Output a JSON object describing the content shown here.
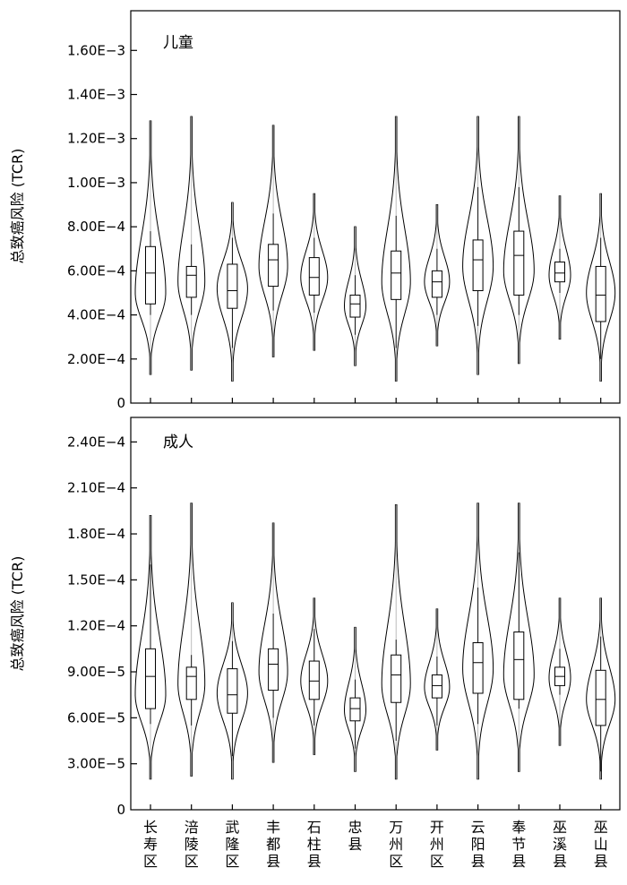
{
  "chart_data": [
    {
      "type": "violin",
      "panel_label": "儿童",
      "ylabel": "总致癌风险 (TCR)",
      "ylim": [
        0,
        0.00178
      ],
      "yticks": [
        0,
        0.0002,
        0.0004,
        0.0006,
        0.0008,
        0.001,
        0.0012,
        0.0014,
        0.0016
      ],
      "ytick_labels": [
        "0",
        "2.00E−4",
        "4.00E−4",
        "6.00E−4",
        "8.00E−4",
        "1.00E−3",
        "1.20E−3",
        "1.40E−3",
        "1.60E−3"
      ],
      "categories": [
        "长寿区",
        "涪陵区",
        "武隆区",
        "丰都县",
        "石柱县",
        "忠县",
        "万州区",
        "开州区",
        "云阳县",
        "奉节县",
        "巫溪县",
        "巫山县"
      ],
      "series": [
        {
          "min": 0.00013,
          "max": 0.00128,
          "q1": 0.00045,
          "median": 0.00059,
          "q3": 0.00071,
          "wlo": 0.0004,
          "whi": 0.00078,
          "mode": 0.0005,
          "width": 0.85
        },
        {
          "min": 0.00015,
          "max": 0.0013,
          "q1": 0.00048,
          "median": 0.00058,
          "q3": 0.00062,
          "wlo": 0.0004,
          "whi": 0.00072,
          "mode": 0.00055,
          "width": 0.75
        },
        {
          "min": 0.0001,
          "max": 0.00091,
          "q1": 0.00043,
          "median": 0.00051,
          "q3": 0.00063,
          "wlo": 0.00025,
          "whi": 0.00075,
          "mode": 0.00052,
          "width": 0.85
        },
        {
          "min": 0.00021,
          "max": 0.00126,
          "q1": 0.00053,
          "median": 0.00065,
          "q3": 0.00072,
          "wlo": 0.00042,
          "whi": 0.00086,
          "mode": 0.00062,
          "width": 0.8
        },
        {
          "min": 0.00024,
          "max": 0.00095,
          "q1": 0.00049,
          "median": 0.00057,
          "q3": 0.00066,
          "wlo": 0.00041,
          "whi": 0.00075,
          "mode": 0.00057,
          "width": 0.75
        },
        {
          "min": 0.00017,
          "max": 0.0008,
          "q1": 0.00039,
          "median": 0.00045,
          "q3": 0.00049,
          "wlo": 0.00031,
          "whi": 0.00058,
          "mode": 0.00044,
          "width": 0.6
        },
        {
          "min": 0.0001,
          "max": 0.0013,
          "q1": 0.00047,
          "median": 0.00059,
          "q3": 0.00069,
          "wlo": 0.00025,
          "whi": 0.00085,
          "mode": 0.00055,
          "width": 0.8
        },
        {
          "min": 0.00026,
          "max": 0.0009,
          "q1": 0.00048,
          "median": 0.00055,
          "q3": 0.0006,
          "wlo": 0.0004,
          "whi": 0.0007,
          "mode": 0.00055,
          "width": 0.7
        },
        {
          "min": 0.00013,
          "max": 0.0013,
          "q1": 0.00051,
          "median": 0.00065,
          "q3": 0.00074,
          "wlo": 0.00035,
          "whi": 0.00098,
          "mode": 0.00062,
          "width": 0.85
        },
        {
          "min": 0.00018,
          "max": 0.0013,
          "q1": 0.00049,
          "median": 0.00067,
          "q3": 0.00078,
          "wlo": 0.0004,
          "whi": 0.00098,
          "mode": 0.0006,
          "width": 0.85
        },
        {
          "min": 0.00029,
          "max": 0.00094,
          "q1": 0.00055,
          "median": 0.00059,
          "q3": 0.00064,
          "wlo": 0.0005,
          "whi": 0.0007,
          "mode": 0.00058,
          "width": 0.6
        },
        {
          "min": 0.0001,
          "max": 0.00095,
          "q1": 0.00037,
          "median": 0.00049,
          "q3": 0.00062,
          "wlo": 0.0002,
          "whi": 0.00075,
          "mode": 0.0005,
          "width": 0.8
        }
      ]
    },
    {
      "type": "violin",
      "panel_label": "成人",
      "ylabel": "总致癌风险 (TCR)",
      "ylim": [
        0,
        0.000256
      ],
      "yticks": [
        0,
        3e-05,
        6e-05,
        9e-05,
        0.00012,
        0.00015,
        0.00018,
        0.00021,
        0.00024
      ],
      "ytick_labels": [
        "0",
        "3.00E−5",
        "6.00E−5",
        "9.00E−5",
        "1.20E−4",
        "1.50E−4",
        "1.80E−4",
        "2.10E−4",
        "2.40E−4"
      ],
      "categories": [
        "长寿区",
        "涪陵区",
        "武隆区",
        "丰都县",
        "石柱县",
        "忠县",
        "万州区",
        "开州区",
        "云阳县",
        "奉节县",
        "巫溪县",
        "巫山县"
      ],
      "series": [
        {
          "min": 2e-05,
          "max": 0.000192,
          "q1": 6.6e-05,
          "median": 8.7e-05,
          "q3": 0.000105,
          "wlo": 5.6e-05,
          "whi": 0.00016,
          "mode": 7.5e-05,
          "width": 0.85
        },
        {
          "min": 2.2e-05,
          "max": 0.0002,
          "q1": 7.2e-05,
          "median": 8.7e-05,
          "q3": 9.3e-05,
          "wlo": 5.5e-05,
          "whi": 0.000101,
          "mode": 8.2e-05,
          "width": 0.75
        },
        {
          "min": 2e-05,
          "max": 0.000135,
          "q1": 6.3e-05,
          "median": 7.5e-05,
          "q3": 9.2e-05,
          "wlo": 3.5e-05,
          "whi": 0.00011,
          "mode": 7.6e-05,
          "width": 0.85
        },
        {
          "min": 3.1e-05,
          "max": 0.000187,
          "q1": 7.8e-05,
          "median": 9.5e-05,
          "q3": 0.000105,
          "wlo": 6e-05,
          "whi": 0.000128,
          "mode": 9e-05,
          "width": 0.8
        },
        {
          "min": 3.6e-05,
          "max": 0.000138,
          "q1": 7.2e-05,
          "median": 8.4e-05,
          "q3": 9.7e-05,
          "wlo": 5.5e-05,
          "whi": 0.000118,
          "mode": 8.4e-05,
          "width": 0.75
        },
        {
          "min": 2.5e-05,
          "max": 0.000119,
          "q1": 5.8e-05,
          "median": 6.6e-05,
          "q3": 7.3e-05,
          "wlo": 4e-05,
          "whi": 8.5e-05,
          "mode": 6.5e-05,
          "width": 0.6
        },
        {
          "min": 2e-05,
          "max": 0.000199,
          "q1": 7e-05,
          "median": 8.8e-05,
          "q3": 0.000101,
          "wlo": 4.5e-05,
          "whi": 0.000111,
          "mode": 8.2e-05,
          "width": 0.8
        },
        {
          "min": 3.9e-05,
          "max": 0.000131,
          "q1": 7.3e-05,
          "median": 8.1e-05,
          "q3": 8.8e-05,
          "wlo": 5.5e-05,
          "whi": 0.0001,
          "mode": 8e-05,
          "width": 0.7
        },
        {
          "min": 2e-05,
          "max": 0.0002,
          "q1": 7.6e-05,
          "median": 9.6e-05,
          "q3": 0.000109,
          "wlo": 5.6e-05,
          "whi": 0.000145,
          "mode": 9.2e-05,
          "width": 0.85
        },
        {
          "min": 2.5e-05,
          "max": 0.0002,
          "q1": 7.2e-05,
          "median": 9.8e-05,
          "q3": 0.000116,
          "wlo": 6.6e-05,
          "whi": 0.000168,
          "mode": 8.8e-05,
          "width": 0.85
        },
        {
          "min": 4.2e-05,
          "max": 0.000138,
          "q1": 8.1e-05,
          "median": 8.7e-05,
          "q3": 9.3e-05,
          "wlo": 7.5e-05,
          "whi": 0.000105,
          "mode": 8.6e-05,
          "width": 0.6
        },
        {
          "min": 2e-05,
          "max": 0.000138,
          "q1": 5.5e-05,
          "median": 7.2e-05,
          "q3": 9.1e-05,
          "wlo": 2.5e-05,
          "whi": 0.000113,
          "mode": 7.2e-05,
          "width": 0.8
        }
      ]
    }
  ]
}
